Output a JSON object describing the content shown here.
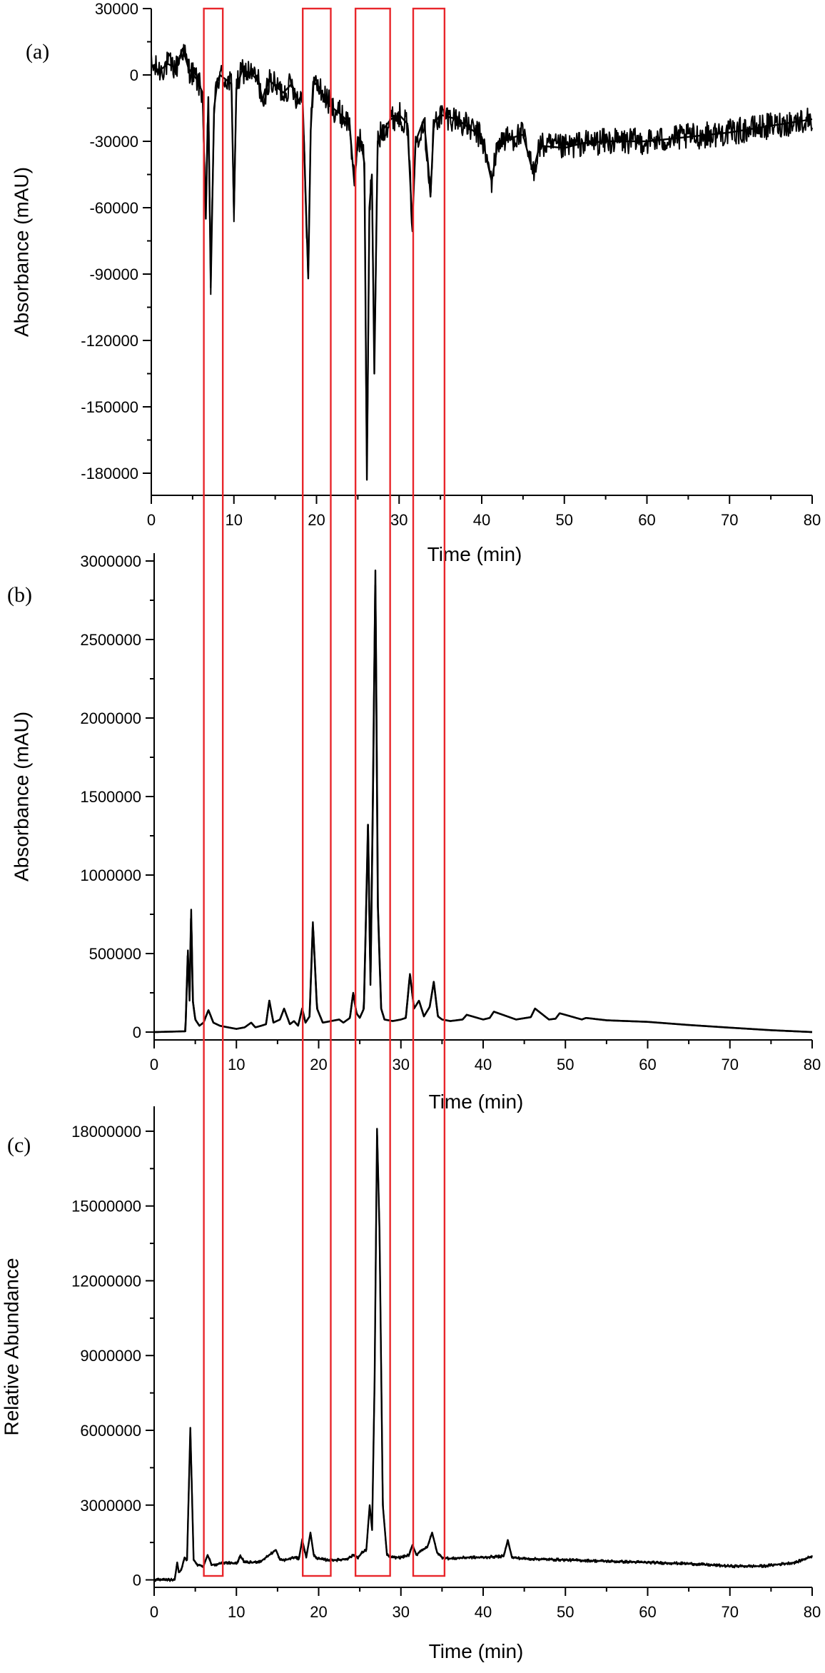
{
  "colors": {
    "trace": "#000000",
    "highlight_box": "#e8262b",
    "axis": "#000000",
    "background": "#ffffff"
  },
  "chart_data": [
    {
      "type": "line",
      "panel_label": "(a)",
      "xlabel": "Time (min)",
      "ylabel": "Absorbance (mAU)",
      "xlim": [
        0,
        80
      ],
      "ylim": [
        -190000,
        30000
      ],
      "xticks": [
        0,
        10,
        20,
        30,
        40,
        50,
        60,
        70,
        80
      ],
      "yticks": [
        30000,
        0,
        -30000,
        -60000,
        -90000,
        -120000,
        -150000,
        -180000
      ],
      "grid": false,
      "noise": 6000,
      "series": [
        {
          "x": [
            0,
            1,
            2,
            3,
            3.8,
            4.5,
            5.5,
            6.2,
            6.6,
            6.9,
            7.2,
            7.6,
            8.0,
            8.3,
            9.0,
            9.7,
            10.0,
            10.3,
            11,
            12,
            13,
            13.6,
            14.2,
            15,
            16,
            17,
            17.8,
            18.3,
            19.0,
            19.3,
            19.6,
            20.2,
            21,
            22,
            23,
            24,
            24.6,
            25.0,
            25.4,
            25.8,
            26.1,
            26.4,
            26.7,
            27.0,
            27.4,
            28,
            29,
            30,
            31,
            31.6,
            32.0,
            32.5,
            33,
            33.5,
            33.8,
            34.2,
            35,
            37,
            40,
            41.2,
            42,
            45,
            46.2,
            47,
            50,
            52,
            55,
            60,
            65,
            70,
            75,
            80
          ],
          "y": [
            4000,
            2000,
            5000,
            3000,
            12000,
            3000,
            -2000,
            -8000,
            -65000,
            -10000,
            -96000,
            -15000,
            -3000,
            0,
            -2000,
            -4000,
            -62000,
            -6000,
            2000,
            1000,
            -3000,
            -14000,
            -2000,
            -5000,
            -8000,
            -4000,
            -12000,
            -8000,
            -92000,
            -25000,
            -3000,
            -5000,
            -10000,
            -15000,
            -18000,
            -22000,
            -50000,
            -28000,
            -30000,
            -40000,
            -183000,
            -60000,
            -45000,
            -135000,
            -30000,
            -25000,
            -20000,
            -18000,
            -22000,
            -68000,
            -30000,
            -25000,
            -20000,
            -40000,
            -55000,
            -22000,
            -18000,
            -20000,
            -28000,
            -48000,
            -30000,
            -27000,
            -44000,
            -32000,
            -33000,
            -31000,
            -30000,
            -30000,
            -28000,
            -26000,
            -23000,
            -20000
          ]
        }
      ]
    },
    {
      "type": "line",
      "panel_label": "(b)",
      "xlabel": "Time (min)",
      "ylabel": "Absorbance (mAU)",
      "xlim": [
        0,
        80
      ],
      "ylim": [
        -50000,
        3050000
      ],
      "xticks": [
        0,
        10,
        20,
        30,
        40,
        50,
        60,
        70,
        80
      ],
      "yticks": [
        0,
        500000,
        1000000,
        1500000,
        2000000,
        2500000,
        3000000
      ],
      "grid": false,
      "noise": 0,
      "series": [
        {
          "x": [
            0,
            3.8,
            4.1,
            4.3,
            4.5,
            4.7,
            5.0,
            5.5,
            6.0,
            6.6,
            7.2,
            8.0,
            9.0,
            10,
            11,
            11.8,
            12.3,
            13,
            13.6,
            14.0,
            14.5,
            15.3,
            15.8,
            16.5,
            17.0,
            17.5,
            18.0,
            18.4,
            18.9,
            19.3,
            19.8,
            20.5,
            21.5,
            22.5,
            23,
            23.8,
            24.2,
            24.6,
            25.0,
            25.5,
            26.0,
            26.3,
            26.6,
            26.9,
            27.2,
            27.6,
            28,
            29,
            30,
            30.6,
            31.1,
            31.6,
            32.2,
            32.8,
            33.5,
            34.0,
            34.5,
            35,
            36,
            37.5,
            38,
            40,
            40.8,
            41.3,
            44,
            45.8,
            46.3,
            48,
            48.8,
            49.3,
            52,
            52.5,
            55,
            60,
            65,
            70,
            75,
            80
          ],
          "y": [
            0,
            5000,
            520000,
            200000,
            780000,
            200000,
            80000,
            40000,
            60000,
            140000,
            60000,
            40000,
            30000,
            20000,
            30000,
            60000,
            30000,
            40000,
            50000,
            200000,
            60000,
            80000,
            150000,
            50000,
            70000,
            40000,
            150000,
            60000,
            100000,
            700000,
            150000,
            60000,
            70000,
            80000,
            60000,
            90000,
            250000,
            120000,
            90000,
            150000,
            1320000,
            300000,
            1500000,
            2940000,
            800000,
            150000,
            80000,
            70000,
            80000,
            90000,
            370000,
            150000,
            200000,
            100000,
            160000,
            320000,
            100000,
            80000,
            70000,
            80000,
            110000,
            80000,
            90000,
            130000,
            80000,
            95000,
            150000,
            80000,
            85000,
            120000,
            80000,
            90000,
            75000,
            65000,
            45000,
            28000,
            12000,
            0
          ]
        }
      ]
    },
    {
      "type": "line",
      "panel_label": "(c)",
      "xlabel": "Time (min)",
      "ylabel": "Relative Abundance",
      "xlim": [
        0,
        80
      ],
      "ylim": [
        -300000,
        19000000
      ],
      "xticks": [
        0,
        10,
        20,
        30,
        40,
        50,
        60,
        70,
        80
      ],
      "yticks": [
        0,
        3000000,
        6000000,
        9000000,
        12000000,
        15000000,
        18000000
      ],
      "grid": false,
      "noise": 60000,
      "series": [
        {
          "x": [
            0,
            2.5,
            2.8,
            3.0,
            3.3,
            3.7,
            4.0,
            4.4,
            4.8,
            5.3,
            6.0,
            6.5,
            7.0,
            8,
            9,
            10,
            10.5,
            11,
            12,
            13,
            14.8,
            15.3,
            16,
            17,
            17.6,
            18.0,
            18.5,
            19.0,
            19.4,
            19.9,
            21,
            22.5,
            23.5,
            24.3,
            24.8,
            25.3,
            25.8,
            26.2,
            26.5,
            26.8,
            27.1,
            27.4,
            27.8,
            28.3,
            29,
            30,
            31,
            31.4,
            31.9,
            32.5,
            33.2,
            33.8,
            34.4,
            35,
            36,
            38,
            40,
            42.5,
            43.0,
            43.5,
            45,
            50,
            55,
            60,
            65,
            70,
            74,
            78,
            80
          ],
          "y": [
            0,
            0,
            700000,
            300000,
            400000,
            900000,
            800000,
            6100000,
            800000,
            600000,
            550000,
            1000000,
            600000,
            650000,
            700000,
            650000,
            950000,
            700000,
            700000,
            750000,
            1200000,
            800000,
            800000,
            900000,
            850000,
            1600000,
            900000,
            1900000,
            1000000,
            850000,
            800000,
            800000,
            850000,
            1000000,
            900000,
            1100000,
            1200000,
            3000000,
            2000000,
            8000000,
            18100000,
            14000000,
            3000000,
            1000000,
            900000,
            900000,
            1000000,
            1400000,
            1000000,
            1200000,
            1300000,
            1900000,
            1100000,
            900000,
            850000,
            900000,
            900000,
            950000,
            1600000,
            900000,
            850000,
            800000,
            750000,
            700000,
            650000,
            550000,
            550000,
            700000,
            950000
          ]
        }
      ]
    }
  ],
  "highlight_windows": [
    {
      "x_start": 6.2,
      "x_end": 8.5
    },
    {
      "x_start": 18.2,
      "x_end": 21.6
    },
    {
      "x_start": 24.6,
      "x_end": 28.8
    },
    {
      "x_start": 31.6,
      "x_end": 35.4
    }
  ]
}
